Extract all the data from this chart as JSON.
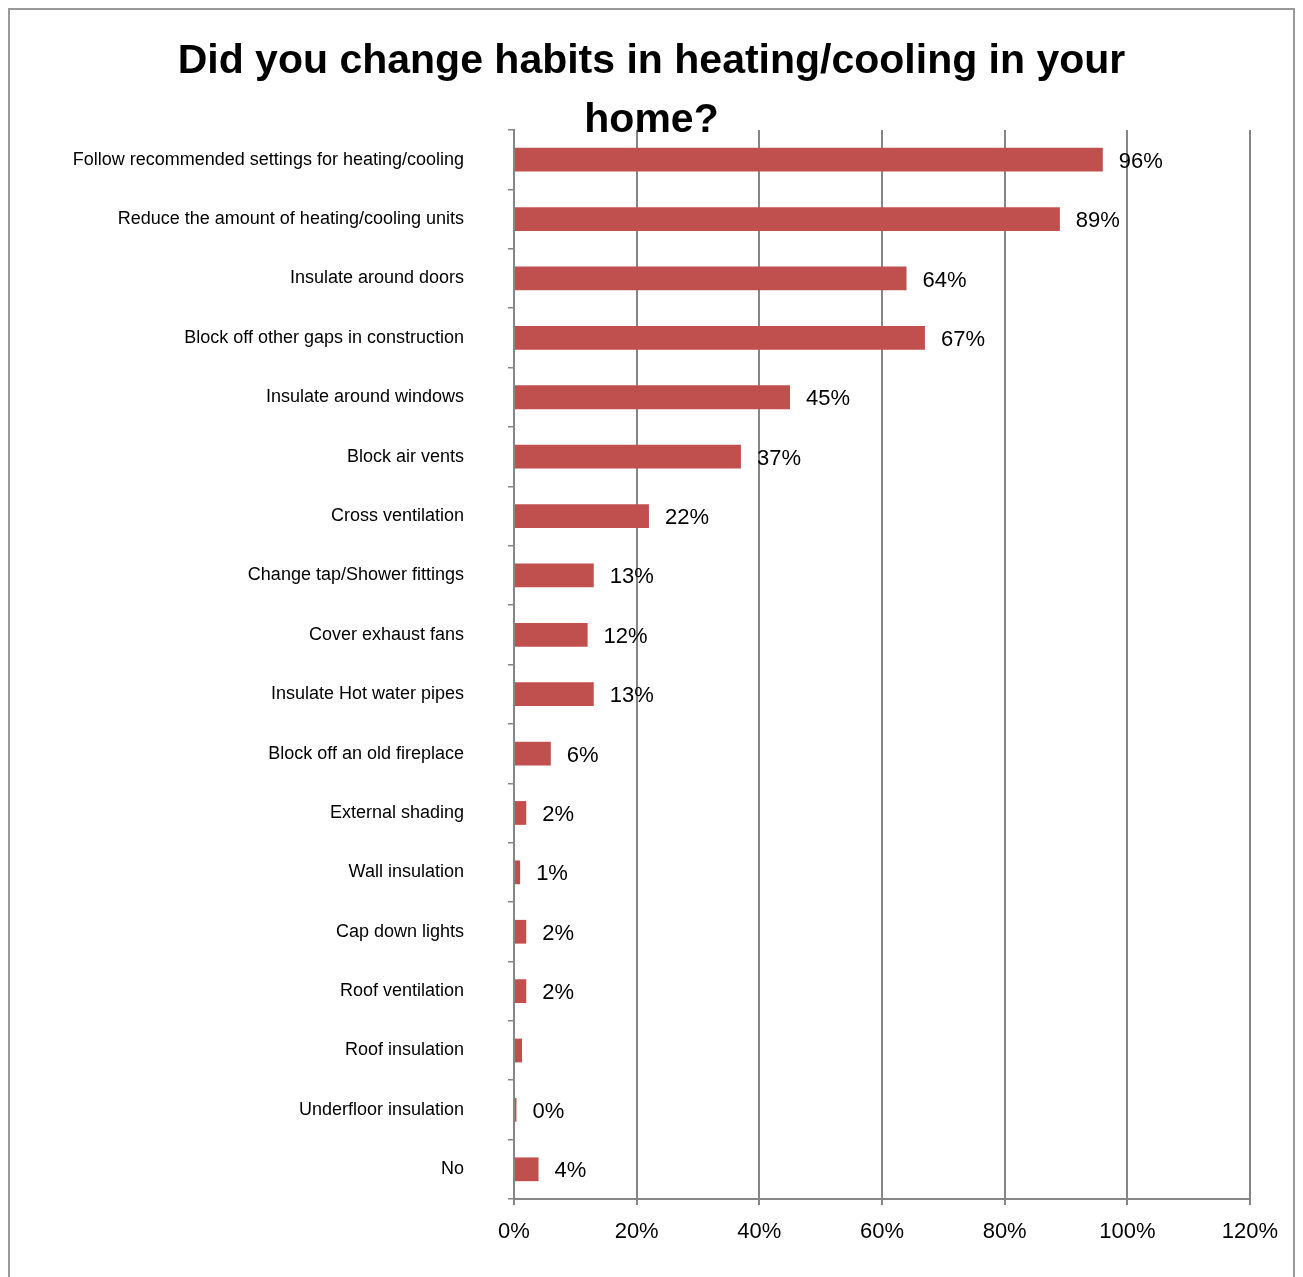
{
  "chart_data": {
    "type": "bar",
    "orientation": "horizontal",
    "title": "Did you change habits in heating/cooling in your home?",
    "categories": [
      "Follow recommended settings for heating/cooling",
      "Reduce the amount of heating/cooling units",
      "Insulate around doors",
      "Block off other gaps in construction",
      "Insulate around windows",
      "Block air vents",
      "Cross ventilation",
      "Change tap/Shower fittings",
      "Cover exhaust fans",
      "Insulate Hot water pipes",
      "Block off an old fireplace",
      "External shading",
      "Wall insulation",
      "Cap down lights",
      "Roof ventilation",
      "Roof insulation",
      "Underfloor insulation",
      "No"
    ],
    "values": [
      96,
      89,
      64,
      67,
      45,
      37,
      22,
      13,
      12,
      13,
      6,
      2,
      1,
      2,
      2,
      1.3,
      0.4,
      4
    ],
    "value_labels": [
      "96%",
      "89%",
      "64%",
      "67%",
      "45%",
      "37%",
      "22%",
      "13%",
      "12%",
      "13%",
      "6%",
      "2%",
      "1%",
      "2%",
      "2%",
      null,
      "0%",
      "4%"
    ],
    "color": "#c0504d",
    "xlim": [
      0,
      120
    ],
    "xticks": [
      {
        "value": 0,
        "label": "0%"
      },
      {
        "value": 20,
        "label": "20%"
      },
      {
        "value": 40,
        "label": "40%"
      },
      {
        "value": 60,
        "label": "60%"
      },
      {
        "value": 80,
        "label": "80%"
      },
      {
        "value": 100,
        "label": "100%"
      },
      {
        "value": 120,
        "label": "120%"
      }
    ],
    "grid": "x",
    "legend": false
  }
}
